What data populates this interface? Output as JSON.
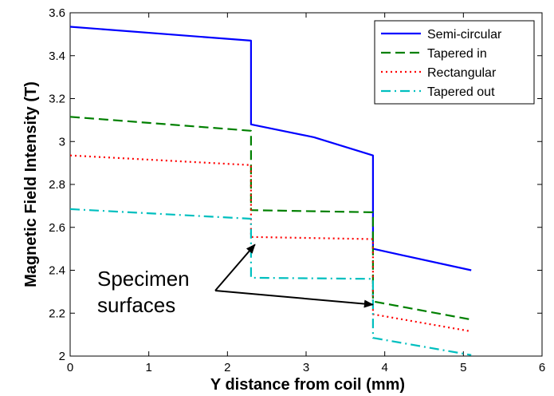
{
  "chart_data": {
    "type": "line",
    "title": "",
    "xlabel": "Y distance from coil (mm)",
    "ylabel": "Magnetic Field Intensity (T)",
    "xlim": [
      0,
      6
    ],
    "ylim": [
      2,
      3.6
    ],
    "xticks": [
      0,
      1,
      2,
      3,
      4,
      5,
      6
    ],
    "yticks": [
      2,
      2.2,
      2.4,
      2.6,
      2.8,
      3,
      3.2,
      3.4,
      3.6
    ],
    "xtick_labels": [
      "0",
      "1",
      "2",
      "3",
      "4",
      "5",
      "6"
    ],
    "ytick_labels": [
      "2",
      "2.2",
      "2.4",
      "2.6",
      "2.8",
      "3",
      "3.2",
      "3.4",
      "3.6"
    ],
    "grid": false,
    "legend_position": "top-right",
    "series": [
      {
        "name": "Semi-circular",
        "color": "#0000ff",
        "style": "solid",
        "x": [
          0,
          2.3,
          2.3,
          3.1,
          3.85,
          3.85,
          5.1
        ],
        "y": [
          3.535,
          3.47,
          3.08,
          3.02,
          2.935,
          2.5,
          2.4
        ]
      },
      {
        "name": "Tapered in",
        "color": "#008000",
        "style": "dashed",
        "x": [
          0,
          2.3,
          2.3,
          3.85,
          3.85,
          5.1
        ],
        "y": [
          3.115,
          3.05,
          2.68,
          2.67,
          2.255,
          2.17
        ]
      },
      {
        "name": "Rectangular",
        "color": "#ff0000",
        "style": "dotted",
        "x": [
          0,
          2.3,
          2.3,
          3.85,
          3.85,
          5.1
        ],
        "y": [
          2.935,
          2.89,
          2.555,
          2.545,
          2.195,
          2.115
        ]
      },
      {
        "name": "Tapered out",
        "color": "#00bfbf",
        "style": "dashdot",
        "x": [
          0,
          2.3,
          2.3,
          3.85,
          3.85,
          5.1
        ],
        "y": [
          2.685,
          2.64,
          2.365,
          2.36,
          2.085,
          2.005
        ]
      }
    ],
    "annotations": [
      {
        "lines": [
          "Specimen",
          "surfaces"
        ],
        "arrows_to": [
          {
            "x": 2.35,
            "y": 2.52
          },
          {
            "x": 3.85,
            "y": 2.24
          }
        ]
      }
    ]
  }
}
